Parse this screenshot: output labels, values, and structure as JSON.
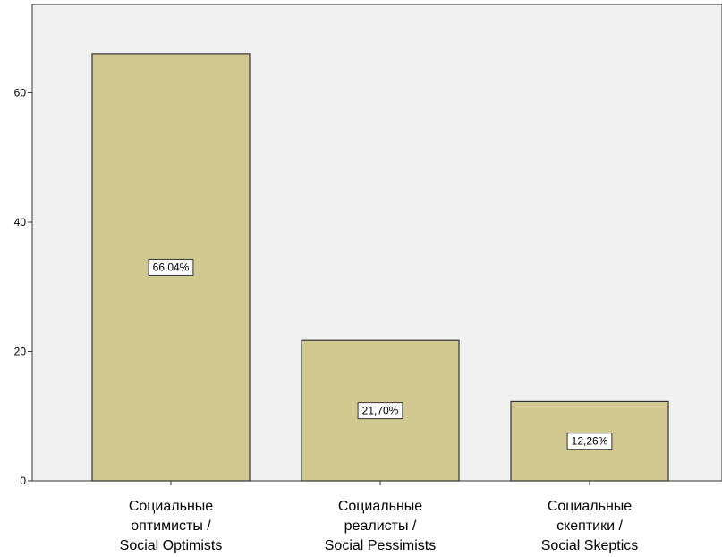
{
  "chart_data": {
    "type": "bar",
    "categories": [
      [
        "Социальные",
        "оптимисты /",
        "Social Optimists"
      ],
      [
        "Социальные",
        "реалисты /",
        "Social Pessimists"
      ],
      [
        "Социальные",
        "скептики /",
        "Social Skeptics"
      ]
    ],
    "values": [
      66.04,
      21.7,
      12.26
    ],
    "data_labels": [
      "66,04%",
      "21,70%",
      "12,26%"
    ],
    "title": "",
    "xlabel": "",
    "ylabel": "",
    "ylim": [
      0,
      75
    ],
    "yticks": [
      0,
      20,
      40,
      60
    ],
    "grid": false,
    "legend": "none",
    "colors": {
      "bar_fill": "#d0c992",
      "bar_stroke": "#333333",
      "plot_background": "#f0f0f0",
      "axis": "#333333",
      "label_box": "#ffffff"
    }
  }
}
